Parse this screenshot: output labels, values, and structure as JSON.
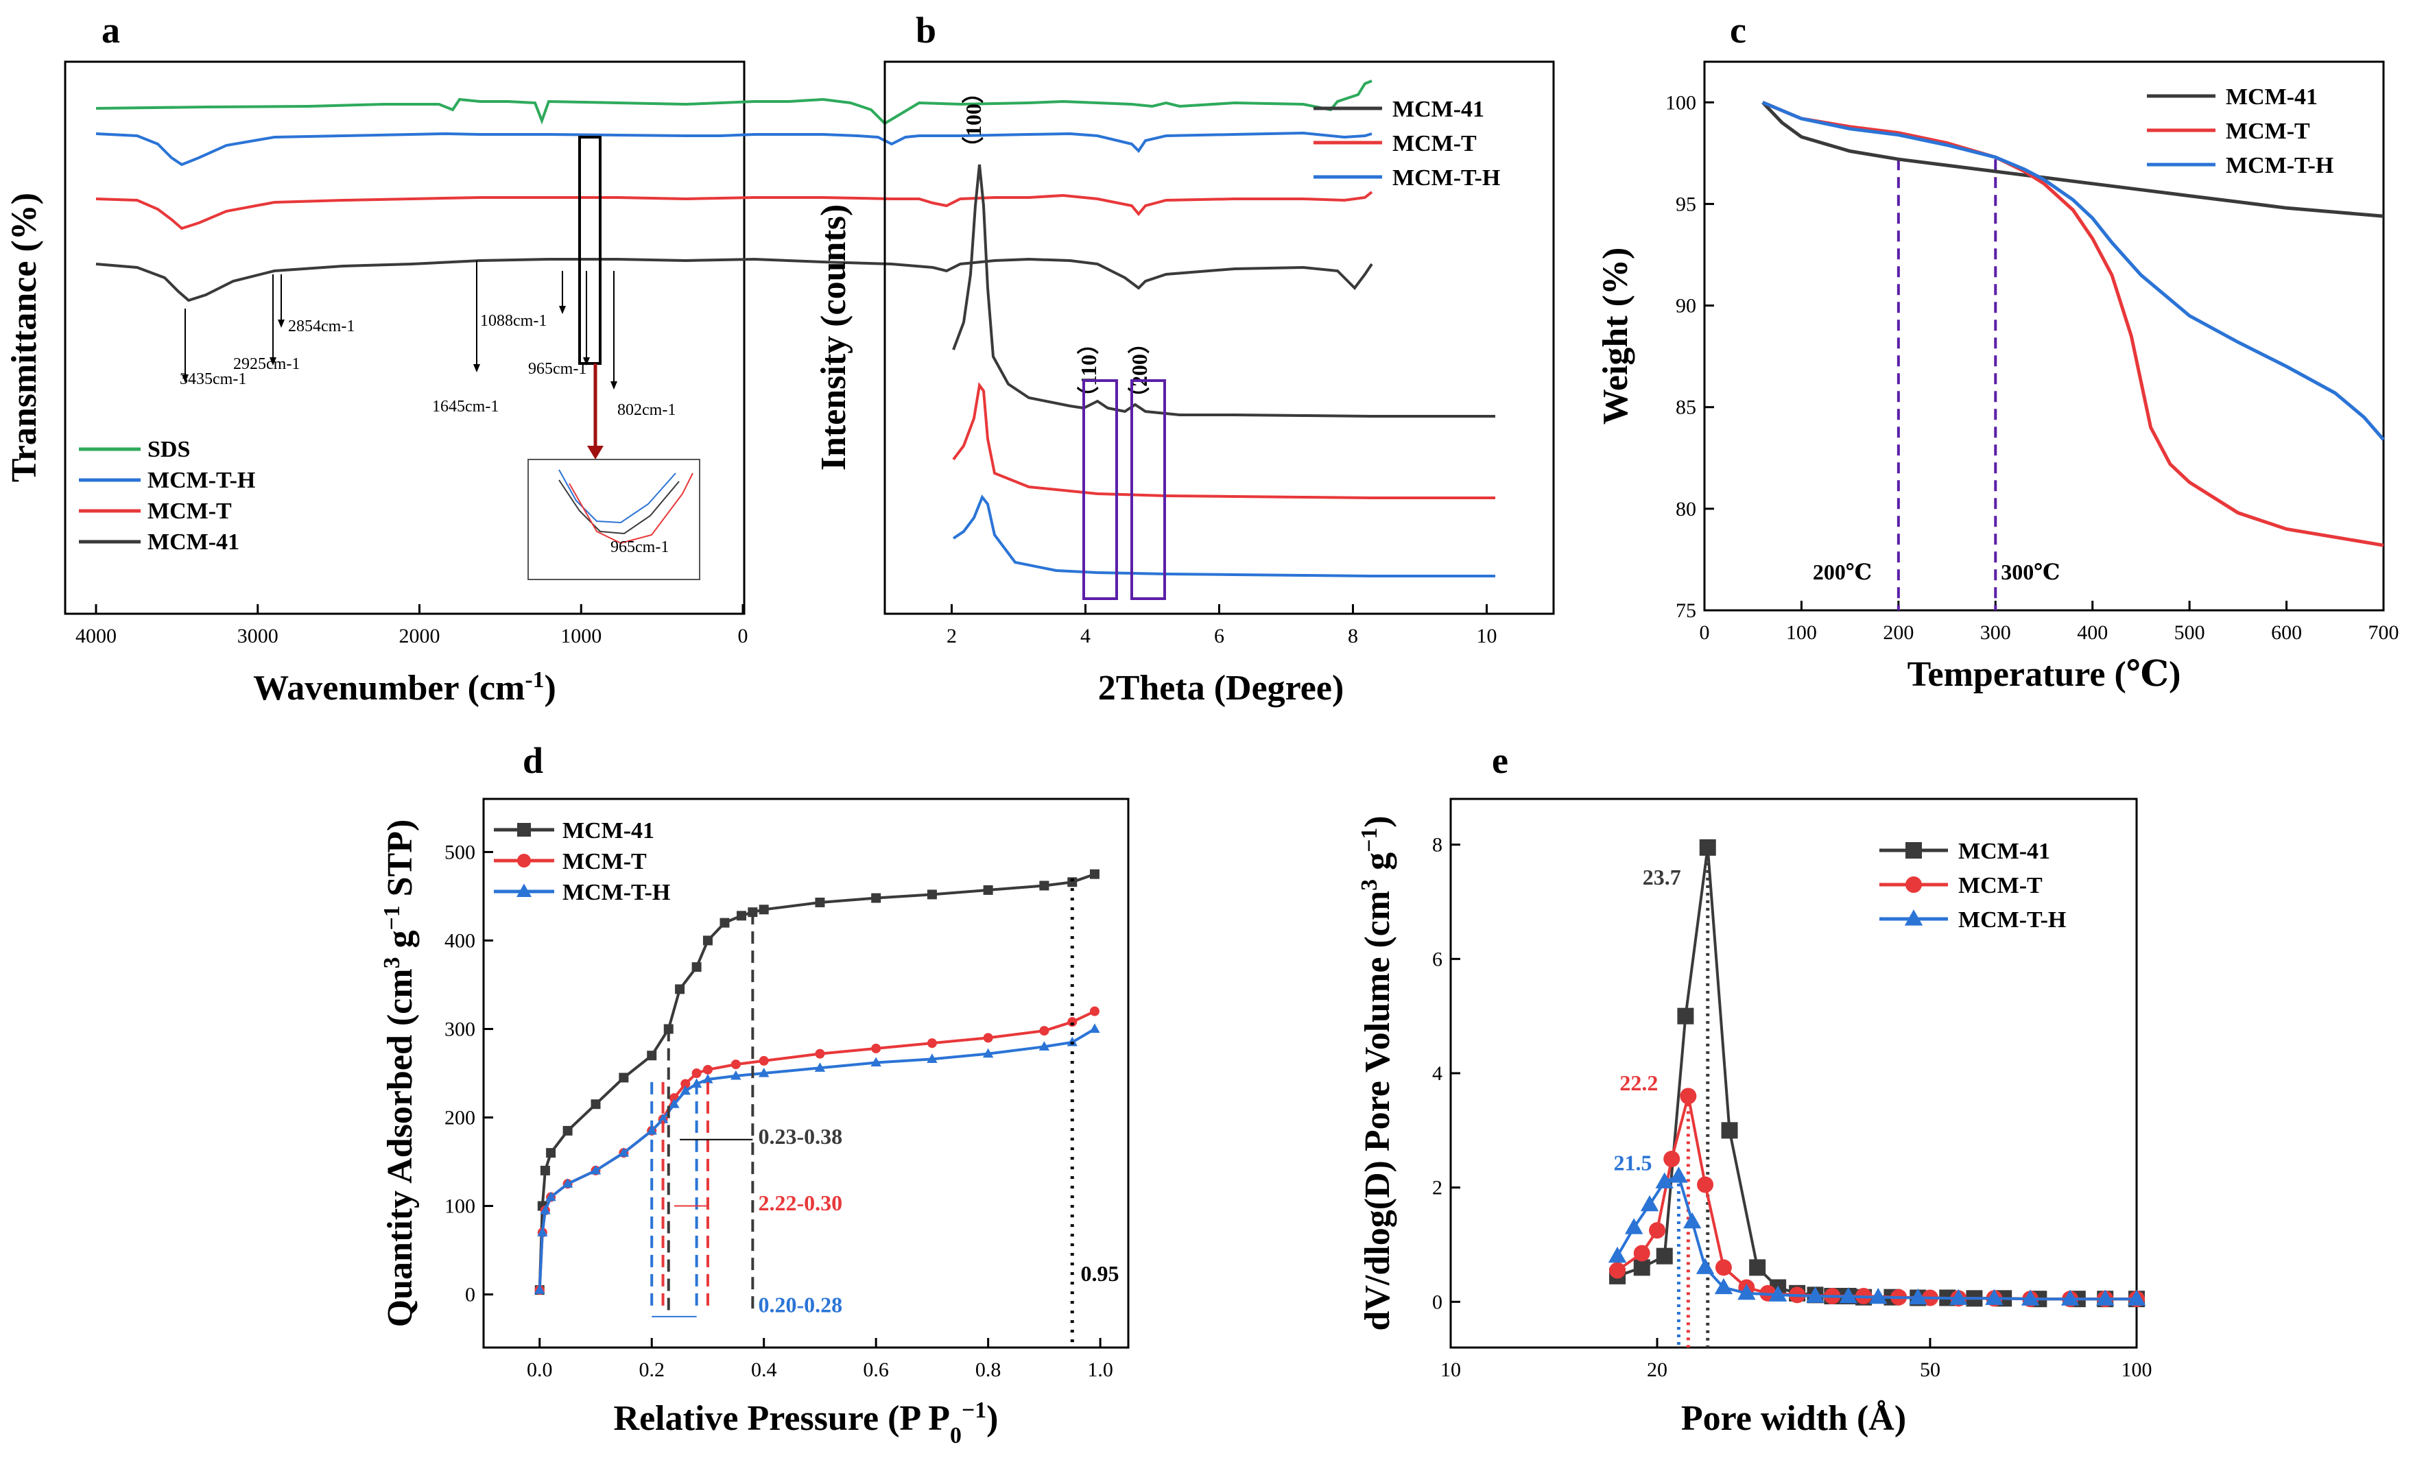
{
  "colors": {
    "black": "#3a3a3a",
    "red": "#e8383a",
    "blue": "#2b74d6",
    "green": "#2eaa5c",
    "purple": "#5b1fa8",
    "navy": "#3b1a8f"
  },
  "chart_data": [
    {
      "panel": "a",
      "type": "line",
      "xlabel": "Wavenumber (cm-1)",
      "ylabel": "Transmittance (%)",
      "xlim": [
        4000,
        0
      ],
      "xticks": [
        "4000",
        "3000",
        "2000",
        "1000",
        "0"
      ],
      "series": [
        {
          "name": "SDS",
          "color": "#2eaa5c"
        },
        {
          "name": "MCM-T-H",
          "color": "#2b74d6"
        },
        {
          "name": "MCM-T",
          "color": "#e8383a"
        },
        {
          "name": "MCM-41",
          "color": "#3a3a3a"
        }
      ],
      "annotations": [
        "3435cm-1",
        "2925cm-1",
        "2854cm-1",
        "1645cm-1",
        "1088cm-1",
        "965cm-1",
        "802cm-1"
      ],
      "inset_label": "965cm-1"
    },
    {
      "panel": "b",
      "type": "line",
      "xlabel": "2Theta (Degree)",
      "ylabel": "Intensity (counts)",
      "xlim": [
        1,
        11
      ],
      "xticks": [
        "2",
        "4",
        "6",
        "8",
        "10"
      ],
      "series": [
        {
          "name": "MCM-41",
          "color": "#3a3a3a"
        },
        {
          "name": "MCM-T",
          "color": "#e8383a"
        },
        {
          "name": "MCM-T-H",
          "color": "#2b74d6"
        }
      ],
      "peaks": [
        "（100）",
        "（110）",
        "（200）"
      ]
    },
    {
      "panel": "c",
      "type": "line",
      "xlabel": "Temperature (℃)",
      "ylabel": "Weight (%)",
      "xlim": [
        0,
        700
      ],
      "ylim": [
        75,
        102
      ],
      "xticks": [
        "0",
        "100",
        "200",
        "300",
        "400",
        "500",
        "600",
        "700"
      ],
      "yticks": [
        "75",
        "80",
        "85",
        "90",
        "95",
        "100"
      ],
      "series": [
        {
          "name": "MCM-41",
          "color": "#3a3a3a",
          "x": [
            60,
            80,
            100,
            150,
            200,
            250,
            300,
            350,
            400,
            450,
            500,
            550,
            600,
            650,
            700
          ],
          "y": [
            100,
            99,
            98.3,
            97.6,
            97.2,
            96.9,
            96.6,
            96.3,
            96.0,
            95.7,
            95.4,
            95.1,
            94.8,
            94.6,
            94.4
          ]
        },
        {
          "name": "MCM-T",
          "color": "#e8383a",
          "x": [
            60,
            100,
            150,
            200,
            250,
            300,
            330,
            350,
            380,
            400,
            420,
            440,
            460,
            480,
            500,
            550,
            600,
            650,
            700
          ],
          "y": [
            100,
            99.2,
            98.8,
            98.5,
            98.0,
            97.3,
            96.6,
            96.0,
            94.7,
            93.3,
            91.5,
            88.5,
            84,
            82.2,
            81.3,
            79.8,
            79.0,
            78.6,
            78.2
          ]
        },
        {
          "name": "MCM-T-H",
          "color": "#2b74d6",
          "x": [
            60,
            100,
            150,
            200,
            250,
            300,
            330,
            350,
            380,
            400,
            420,
            450,
            480,
            500,
            550,
            600,
            650,
            680,
            700
          ],
          "y": [
            100,
            99.2,
            98.7,
            98.4,
            97.9,
            97.3,
            96.7,
            96.2,
            95.2,
            94.3,
            93.1,
            91.5,
            90.3,
            89.5,
            88.2,
            87.0,
            85.7,
            84.5,
            83.4
          ]
        }
      ],
      "markers": [
        "200℃",
        "300℃"
      ]
    },
    {
      "panel": "d",
      "type": "line",
      "xlabel": "Relative Pressure (P P0−1)",
      "ylabel": "Quantity Adsorbed (cm3 g−1 STP)",
      "xlim": [
        -0.1,
        1.05
      ],
      "ylim": [
        -60,
        560
      ],
      "xticks": [
        "0.0",
        "0.2",
        "0.4",
        "0.6",
        "0.8",
        "1.0"
      ],
      "yticks": [
        "0",
        "100",
        "200",
        "300",
        "400",
        "500"
      ],
      "series": [
        {
          "name": "MCM-41",
          "color": "#3a3a3a",
          "x": [
            0,
            0.005,
            0.01,
            0.02,
            0.05,
            0.1,
            0.15,
            0.2,
            0.23,
            0.25,
            0.28,
            0.3,
            0.33,
            0.36,
            0.38,
            0.4,
            0.5,
            0.6,
            0.7,
            0.8,
            0.9,
            0.95,
            0.99
          ],
          "y": [
            5,
            100,
            140,
            160,
            185,
            215,
            245,
            270,
            300,
            345,
            370,
            400,
            420,
            428,
            432,
            435,
            443,
            448,
            452,
            457,
            462,
            466,
            475
          ]
        },
        {
          "name": "MCM-T",
          "color": "#e8383a",
          "x": [
            0,
            0.005,
            0.01,
            0.02,
            0.05,
            0.1,
            0.15,
            0.2,
            0.22,
            0.24,
            0.26,
            0.28,
            0.3,
            0.35,
            0.4,
            0.5,
            0.6,
            0.7,
            0.8,
            0.9,
            0.95,
            0.99
          ],
          "y": [
            5,
            70,
            95,
            110,
            125,
            140,
            160,
            185,
            198,
            222,
            238,
            250,
            254,
            260,
            264,
            272,
            278,
            284,
            290,
            298,
            308,
            320
          ]
        },
        {
          "name": "MCM-T-H",
          "color": "#2b74d6",
          "x": [
            0,
            0.005,
            0.01,
            0.02,
            0.05,
            0.1,
            0.15,
            0.2,
            0.22,
            0.24,
            0.26,
            0.28,
            0.3,
            0.35,
            0.4,
            0.5,
            0.6,
            0.7,
            0.8,
            0.9,
            0.95,
            0.99
          ],
          "y": [
            5,
            70,
            95,
            110,
            125,
            140,
            160,
            185,
            198,
            215,
            230,
            238,
            243,
            247,
            250,
            256,
            262,
            266,
            272,
            280,
            285,
            300
          ]
        }
      ],
      "annotations": [
        "0.23-0.38",
        "2.22-0.30",
        "0.20-0.28",
        "0.95"
      ]
    },
    {
      "panel": "e",
      "type": "line",
      "xlabel": "Pore width (Å)",
      "ylabel": "dV/dlog(D) Pore Volume (cm3 g−1)",
      "xscale": "log",
      "xlim": [
        10,
        100
      ],
      "ylim": [
        -0.8,
        8.8
      ],
      "xticks": [
        "10",
        "20",
        "50",
        "100"
      ],
      "yticks": [
        "0",
        "2",
        "4",
        "6",
        "8"
      ],
      "series": [
        {
          "name": "MCM-41",
          "color": "#3a3a3a",
          "x": [
            17.5,
            19,
            20.5,
            22,
            23.7,
            25.5,
            28,
            30,
            32,
            34,
            36,
            38,
            40,
            44,
            48,
            53,
            58,
            64,
            72,
            82,
            90,
            100
          ],
          "y": [
            0.45,
            0.6,
            0.8,
            5.0,
            7.95,
            3.0,
            0.6,
            0.25,
            0.15,
            0.12,
            0.1,
            0.1,
            0.08,
            0.08,
            0.07,
            0.07,
            0.06,
            0.06,
            0.05,
            0.05,
            0.05,
            0.05
          ]
        },
        {
          "name": "MCM-T",
          "color": "#e8383a",
          "x": [
            17.5,
            19,
            20,
            21,
            22.2,
            23.5,
            25,
            27,
            29,
            32,
            36,
            40,
            45,
            50,
            55,
            62,
            70,
            80,
            90,
            100
          ],
          "y": [
            0.55,
            0.85,
            1.25,
            2.5,
            3.6,
            2.05,
            0.6,
            0.25,
            0.15,
            0.12,
            0.1,
            0.1,
            0.08,
            0.07,
            0.06,
            0.06,
            0.05,
            0.05,
            0.05,
            0.05
          ]
        },
        {
          "name": "MCM-T-H",
          "color": "#2b74d6",
          "x": [
            17.5,
            18.5,
            19.5,
            20.5,
            21.5,
            22.5,
            23.5,
            25,
            27,
            30,
            34,
            38,
            42,
            48,
            55,
            62,
            70,
            80,
            90,
            100
          ],
          "y": [
            0.8,
            1.3,
            1.7,
            2.1,
            2.2,
            1.4,
            0.6,
            0.25,
            0.15,
            0.12,
            0.1,
            0.09,
            0.08,
            0.07,
            0.06,
            0.06,
            0.05,
            0.05,
            0.05,
            0.05
          ]
        }
      ],
      "annotations": [
        "23.7",
        "22.2",
        "21.5"
      ]
    }
  ],
  "panel_labels": [
    "a",
    "b",
    "c",
    "d",
    "e"
  ]
}
